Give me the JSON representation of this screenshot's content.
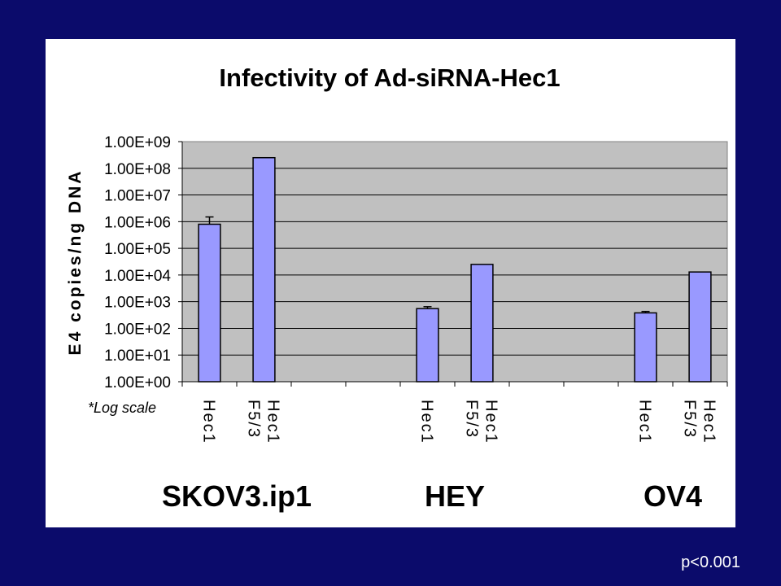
{
  "chart_data": {
    "type": "bar",
    "title": "Infectivity of Ad-siRNA-Hec1",
    "ylabel": "E4 copies/ng DNA",
    "xlabel": "",
    "yscale": "log",
    "ylim": [
      1,
      1000000000
    ],
    "yticks": [
      "1.00E+00",
      "1.00E+01",
      "1.00E+02",
      "1.00E+03",
      "1.00E+04",
      "1.00E+05",
      "1.00E+06",
      "1.00E+07",
      "1.00E+08",
      "1.00E+09"
    ],
    "grid": true,
    "bar_color": "#9999ff",
    "plot_bg": "#c0c0c0",
    "slots": [
      "Hec1",
      "Hec1 F5/3",
      "",
      "",
      "Hec1",
      "Hec1 F5/3",
      "",
      "",
      "Hec1",
      "Hec1 F5/3"
    ],
    "bars": [
      {
        "slot": 0,
        "group": "SKOV3.ip1",
        "category": [
          "Hec1"
        ],
        "value": 800000,
        "error_upper": 1500000
      },
      {
        "slot": 1,
        "group": "SKOV3.ip1",
        "category": [
          "Hec1",
          "F5/3"
        ],
        "value": 250000000,
        "error_upper": null
      },
      {
        "slot": 4,
        "group": "HEY",
        "category": [
          "Hec1"
        ],
        "value": 550,
        "error_upper": 650
      },
      {
        "slot": 5,
        "group": "HEY",
        "category": [
          "Hec1",
          "F5/3"
        ],
        "value": 25000,
        "error_upper": null
      },
      {
        "slot": 8,
        "group": "OV4",
        "category": [
          "Hec1"
        ],
        "value": 380,
        "error_upper": 430
      },
      {
        "slot": 9,
        "group": "OV4",
        "category": [
          "Hec1",
          "F5/3"
        ],
        "value": 13000,
        "error_upper": null
      }
    ],
    "groups": [
      {
        "label": "SKOV3.ip1",
        "slots": [
          0,
          1
        ]
      },
      {
        "label": "HEY",
        "slots": [
          4,
          5
        ]
      },
      {
        "label": "OV4",
        "slots": [
          8,
          9
        ]
      }
    ],
    "annotations": [
      "*Log scale"
    ]
  },
  "footer": {
    "pvalue": "p<0.001"
  }
}
